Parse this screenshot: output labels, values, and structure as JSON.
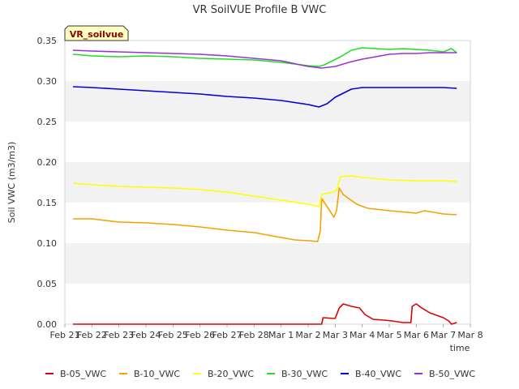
{
  "chart_data": {
    "type": "line",
    "title": "VR SoilVUE Profile B VWC",
    "xlabel": "time",
    "ylabel": "Soil VWC (m3/m3)",
    "station_badge": "VR_soilvue",
    "x_ticks": [
      "Feb 21",
      "Feb 22",
      "Feb 23",
      "Feb 24",
      "Feb 25",
      "Feb 26",
      "Feb 27",
      "Feb 28",
      "Mar 1",
      "Mar 2",
      "Mar 3",
      "Mar 4",
      "Mar 5",
      "Mar 6",
      "Mar 7",
      "Mar 8"
    ],
    "x_range_days": [
      0,
      15
    ],
    "y_ticks": [
      "0.00",
      "0.05",
      "0.10",
      "0.15",
      "0.20",
      "0.25",
      "0.30",
      "0.35"
    ],
    "ylim": [
      0,
      0.35
    ],
    "grid": "horizontal alternating bands",
    "legend_position": "bottom",
    "series": [
      {
        "name": "B-05_VWC",
        "color": "#e00000",
        "points": [
          [
            0.3,
            0.0
          ],
          [
            2,
            0.0
          ],
          [
            4,
            0.0
          ],
          [
            6,
            0.0
          ],
          [
            8,
            0.0
          ],
          [
            9.5,
            0.0
          ],
          [
            9.55,
            0.008
          ],
          [
            10,
            0.007
          ],
          [
            10.15,
            0.02
          ],
          [
            10.3,
            0.025
          ],
          [
            10.6,
            0.022
          ],
          [
            10.9,
            0.02
          ],
          [
            11.1,
            0.012
          ],
          [
            11.4,
            0.006
          ],
          [
            11.8,
            0.005
          ],
          [
            12.1,
            0.004
          ],
          [
            12.5,
            0.002
          ],
          [
            12.8,
            0.002
          ],
          [
            12.85,
            0.022
          ],
          [
            13.0,
            0.025
          ],
          [
            13.2,
            0.02
          ],
          [
            13.5,
            0.014
          ],
          [
            14.0,
            0.008
          ],
          [
            14.2,
            0.004
          ],
          [
            14.3,
            0.0
          ],
          [
            14.5,
            0.002
          ]
        ]
      },
      {
        "name": "B-10_VWC",
        "color": "#f5a000",
        "points": [
          [
            0.3,
            0.13
          ],
          [
            1,
            0.13
          ],
          [
            2,
            0.126
          ],
          [
            3,
            0.125
          ],
          [
            4,
            0.123
          ],
          [
            5,
            0.12
          ],
          [
            6,
            0.116
          ],
          [
            7,
            0.113
          ],
          [
            7.5,
            0.11
          ],
          [
            8,
            0.107
          ],
          [
            8.5,
            0.104
          ],
          [
            9,
            0.103
          ],
          [
            9.35,
            0.102
          ],
          [
            9.45,
            0.115
          ],
          [
            9.5,
            0.155
          ],
          [
            9.6,
            0.15
          ],
          [
            9.8,
            0.14
          ],
          [
            9.95,
            0.132
          ],
          [
            10.05,
            0.14
          ],
          [
            10.15,
            0.168
          ],
          [
            10.3,
            0.16
          ],
          [
            10.5,
            0.155
          ],
          [
            10.8,
            0.148
          ],
          [
            11.2,
            0.143
          ],
          [
            12,
            0.14
          ],
          [
            13,
            0.137
          ],
          [
            13.3,
            0.14
          ],
          [
            14,
            0.136
          ],
          [
            14.5,
            0.135
          ]
        ]
      },
      {
        "name": "B-20_VWC",
        "color": "#ffff00",
        "points": [
          [
            0.3,
            0.174
          ],
          [
            1,
            0.172
          ],
          [
            2,
            0.17
          ],
          [
            3,
            0.169
          ],
          [
            4,
            0.168
          ],
          [
            5,
            0.166
          ],
          [
            6,
            0.163
          ],
          [
            7,
            0.158
          ],
          [
            8,
            0.153
          ],
          [
            9,
            0.148
          ],
          [
            9.4,
            0.145
          ],
          [
            9.5,
            0.16
          ],
          [
            9.9,
            0.163
          ],
          [
            10.05,
            0.165
          ],
          [
            10.2,
            0.182
          ],
          [
            10.6,
            0.183
          ],
          [
            11,
            0.181
          ],
          [
            12,
            0.178
          ],
          [
            13,
            0.177
          ],
          [
            14,
            0.177
          ],
          [
            14.5,
            0.176
          ]
        ]
      },
      {
        "name": "B-30_VWC",
        "color": "#22dd22",
        "points": [
          [
            0.3,
            0.333
          ],
          [
            1,
            0.331
          ],
          [
            2,
            0.33
          ],
          [
            3,
            0.331
          ],
          [
            4,
            0.33
          ],
          [
            5,
            0.328
          ],
          [
            6,
            0.327
          ],
          [
            7,
            0.326
          ],
          [
            8,
            0.323
          ],
          [
            8.5,
            0.321
          ],
          [
            9,
            0.319
          ],
          [
            9.4,
            0.318
          ],
          [
            9.6,
            0.32
          ],
          [
            9.9,
            0.325
          ],
          [
            10.2,
            0.33
          ],
          [
            10.6,
            0.338
          ],
          [
            11,
            0.341
          ],
          [
            11.5,
            0.34
          ],
          [
            12,
            0.339
          ],
          [
            12.5,
            0.34
          ],
          [
            13,
            0.339
          ],
          [
            13.5,
            0.338
          ],
          [
            14,
            0.336
          ],
          [
            14.3,
            0.34
          ],
          [
            14.5,
            0.335
          ]
        ]
      },
      {
        "name": "B-40_VWC",
        "color": "#0000dd",
        "points": [
          [
            0.3,
            0.293
          ],
          [
            1,
            0.292
          ],
          [
            2,
            0.29
          ],
          [
            3,
            0.288
          ],
          [
            4,
            0.286
          ],
          [
            5,
            0.284
          ],
          [
            6,
            0.281
          ],
          [
            7,
            0.279
          ],
          [
            8,
            0.276
          ],
          [
            9,
            0.271
          ],
          [
            9.4,
            0.268
          ],
          [
            9.7,
            0.272
          ],
          [
            10,
            0.28
          ],
          [
            10.3,
            0.285
          ],
          [
            10.6,
            0.29
          ],
          [
            11,
            0.292
          ],
          [
            12,
            0.292
          ],
          [
            13,
            0.292
          ],
          [
            14,
            0.292
          ],
          [
            14.5,
            0.291
          ]
        ]
      },
      {
        "name": "B-50_VWC",
        "color": "#9b30d9",
        "points": [
          [
            0.3,
            0.338
          ],
          [
            1,
            0.337
          ],
          [
            2,
            0.336
          ],
          [
            3,
            0.335
          ],
          [
            4,
            0.334
          ],
          [
            5,
            0.333
          ],
          [
            6,
            0.331
          ],
          [
            7,
            0.328
          ],
          [
            8,
            0.325
          ],
          [
            8.7,
            0.32
          ],
          [
            9,
            0.318
          ],
          [
            9.5,
            0.316
          ],
          [
            10,
            0.318
          ],
          [
            10.5,
            0.323
          ],
          [
            11,
            0.327
          ],
          [
            11.5,
            0.33
          ],
          [
            12,
            0.333
          ],
          [
            12.5,
            0.334
          ],
          [
            13,
            0.334
          ],
          [
            13.5,
            0.335
          ],
          [
            14,
            0.335
          ],
          [
            14.5,
            0.335
          ]
        ]
      }
    ]
  }
}
